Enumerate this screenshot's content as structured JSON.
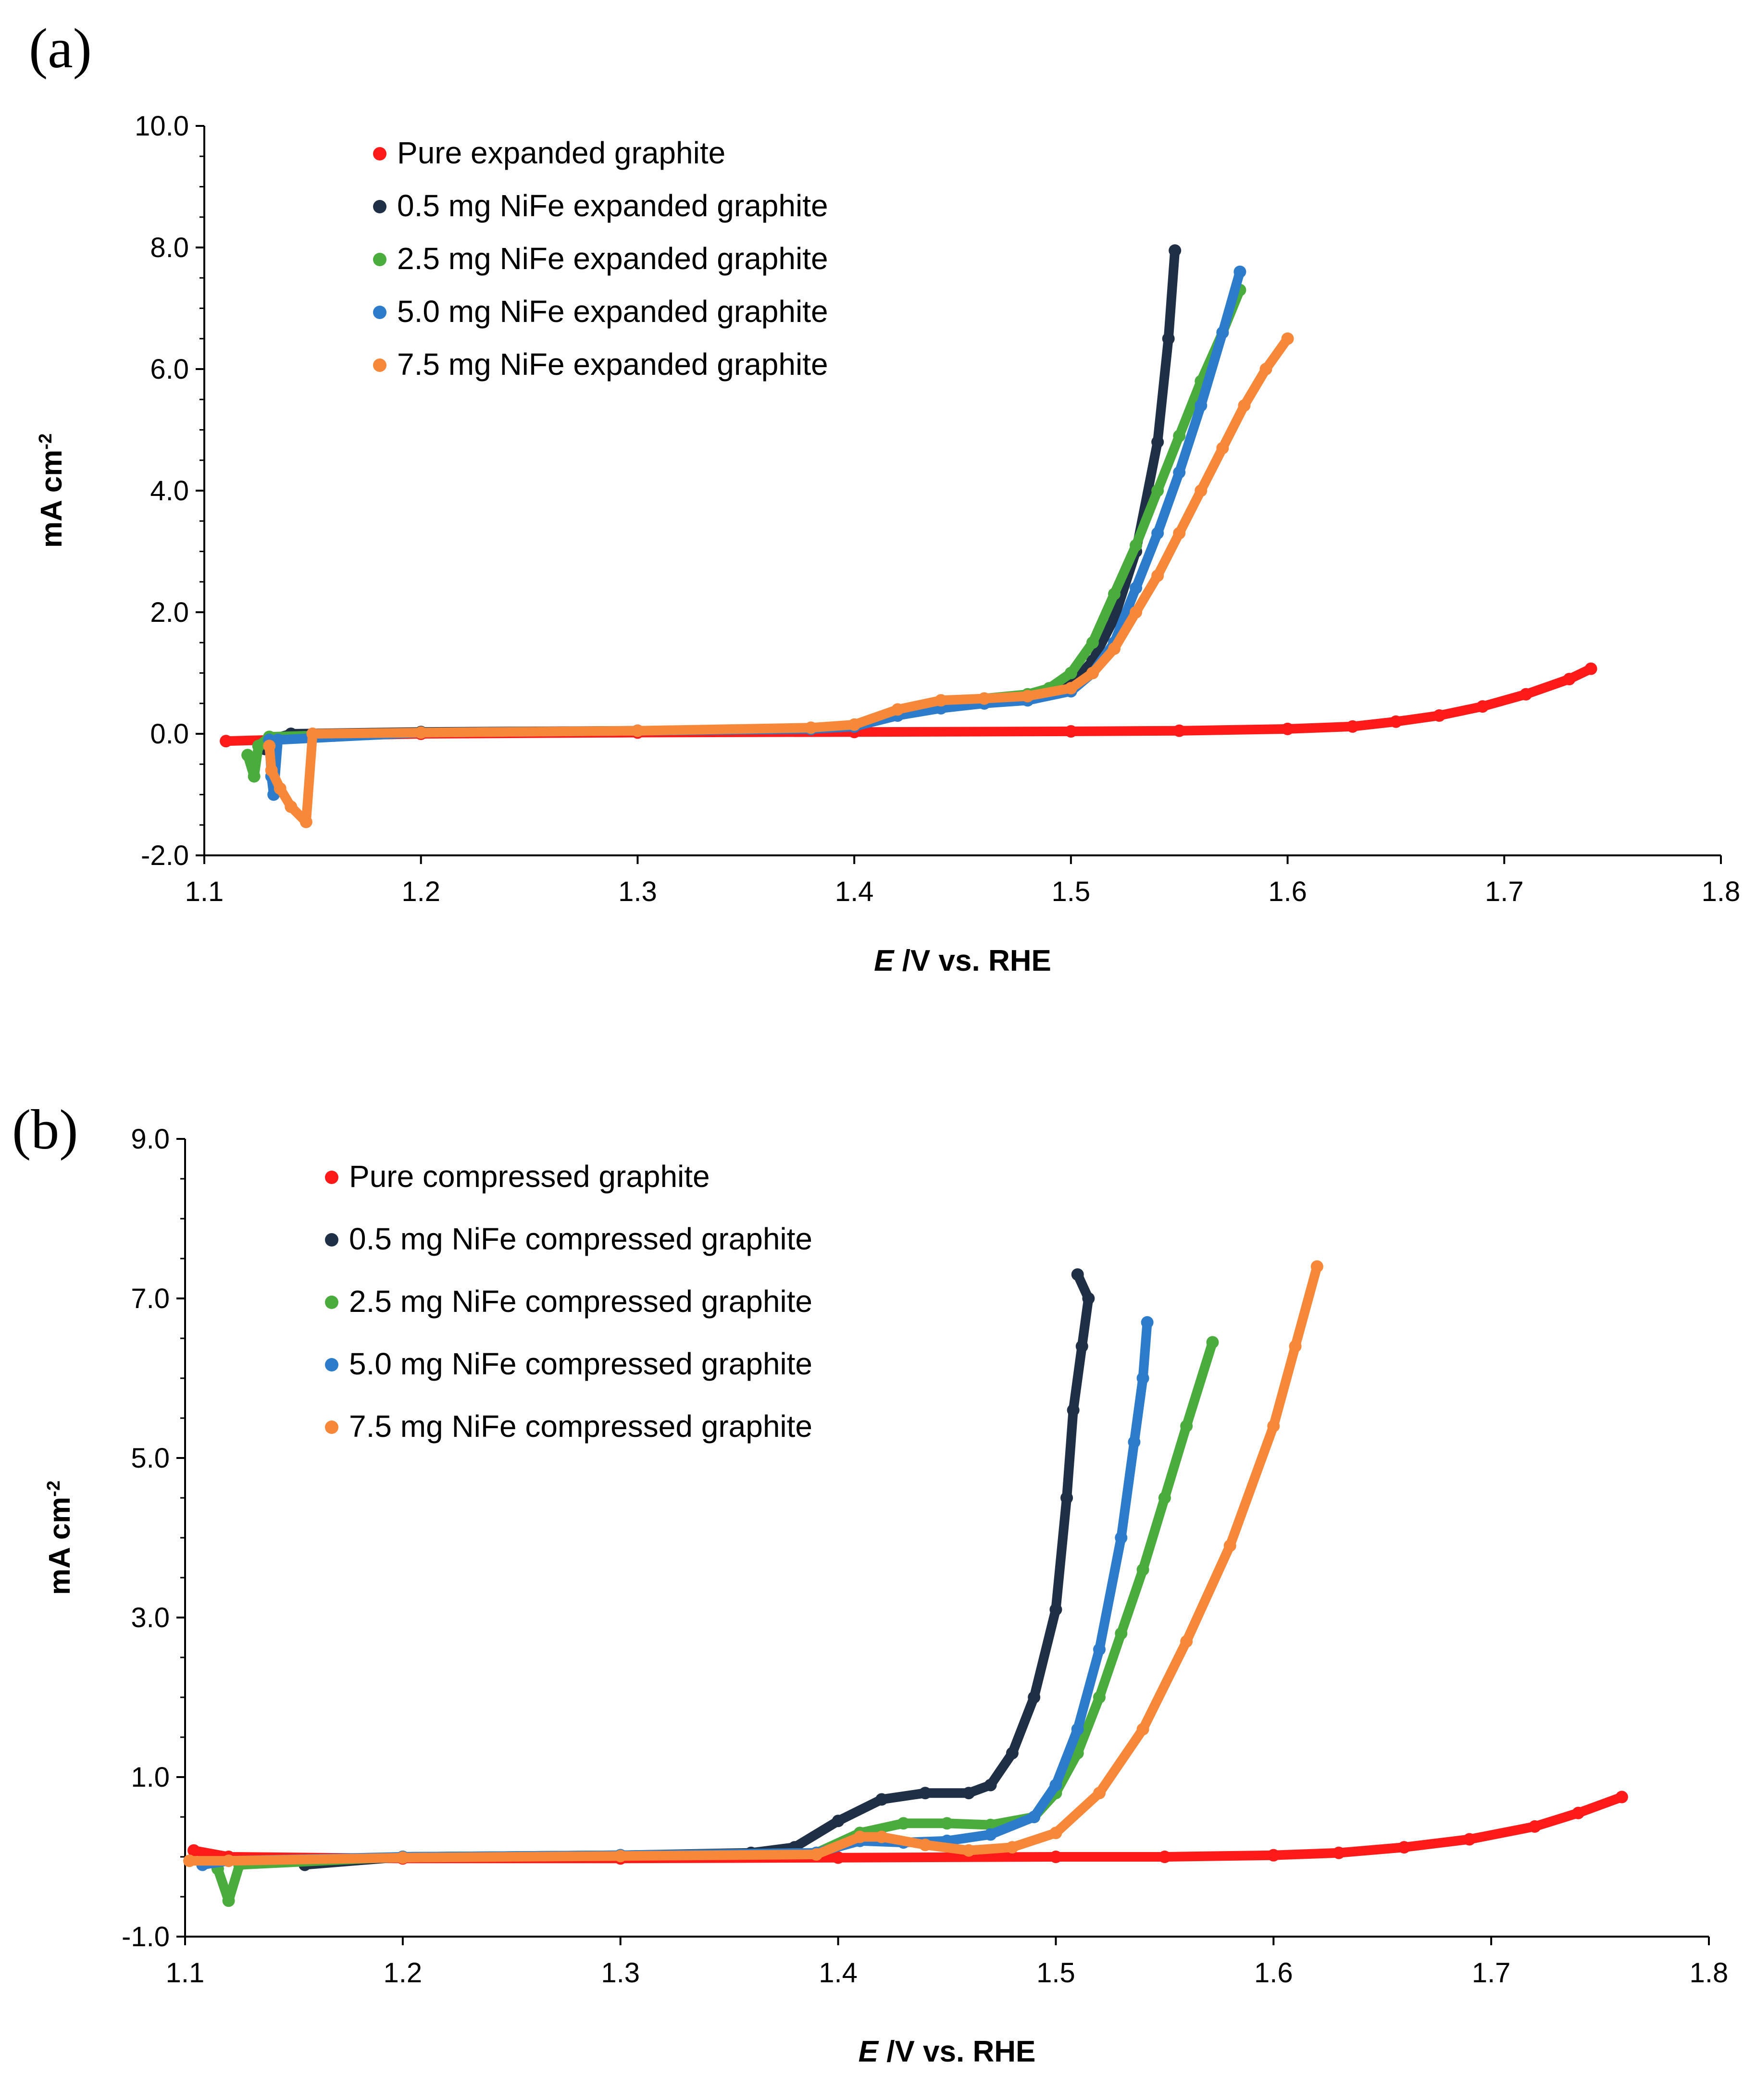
{
  "chart_data": [
    {
      "panel": "(a)",
      "type": "scatter",
      "xlabel_italic": "E",
      "xlabel_rest": " /V vs. RHE",
      "ylabel": "mA cm",
      "ylabel_sup": "-2",
      "xlim": [
        1.1,
        1.8
      ],
      "ylim": [
        -2.0,
        10.0
      ],
      "xticks": [
        1.1,
        1.2,
        1.3,
        1.4,
        1.5,
        1.6,
        1.7,
        1.8
      ],
      "xtick_labels": [
        "1.1",
        "1.2",
        "1.3",
        "1.4",
        "1.5",
        "1.6",
        "1.7",
        "1.8"
      ],
      "yticks": [
        -2.0,
        0.0,
        2.0,
        4.0,
        6.0,
        8.0,
        10.0
      ],
      "ytick_labels": [
        "-2.0",
        "0.0",
        "2.0",
        "4.0",
        "6.0",
        "8.0",
        "10.0"
      ],
      "legend_position": "top-left",
      "series": [
        {
          "name": "Pure expanded graphite",
          "color": "#ff1a1a",
          "points": [
            [
              1.11,
              -0.12
            ],
            [
              1.13,
              -0.1
            ],
            [
              1.16,
              -0.03
            ],
            [
              1.2,
              0.0
            ],
            [
              1.3,
              0.02
            ],
            [
              1.4,
              0.03
            ],
            [
              1.5,
              0.04
            ],
            [
              1.55,
              0.05
            ],
            [
              1.6,
              0.08
            ],
            [
              1.63,
              0.12
            ],
            [
              1.65,
              0.2
            ],
            [
              1.67,
              0.3
            ],
            [
              1.69,
              0.45
            ],
            [
              1.71,
              0.65
            ],
            [
              1.73,
              0.9
            ],
            [
              1.74,
              1.07
            ]
          ]
        },
        {
          "name": "0.5 mg NiFe expanded graphite",
          "color": "#1f2f45",
          "points": [
            [
              1.128,
              -0.25
            ],
            [
              1.13,
              -0.1
            ],
            [
              1.14,
              0.0
            ],
            [
              1.2,
              0.03
            ],
            [
              1.3,
              0.05
            ],
            [
              1.38,
              0.08
            ],
            [
              1.4,
              0.12
            ],
            [
              1.42,
              0.3
            ],
            [
              1.44,
              0.45
            ],
            [
              1.46,
              0.5
            ],
            [
              1.48,
              0.6
            ],
            [
              1.5,
              0.8
            ],
            [
              1.51,
              1.2
            ],
            [
              1.52,
              1.9
            ],
            [
              1.53,
              3.0
            ],
            [
              1.54,
              4.8
            ],
            [
              1.545,
              6.5
            ],
            [
              1.548,
              7.95
            ]
          ]
        },
        {
          "name": "2.5 mg NiFe expanded graphite",
          "color": "#4aac3d",
          "points": [
            [
              1.12,
              -0.35
            ],
            [
              1.123,
              -0.7
            ],
            [
              1.125,
              -0.2
            ],
            [
              1.13,
              -0.05
            ],
            [
              1.2,
              0.02
            ],
            [
              1.3,
              0.05
            ],
            [
              1.38,
              0.08
            ],
            [
              1.4,
              0.15
            ],
            [
              1.42,
              0.35
            ],
            [
              1.44,
              0.5
            ],
            [
              1.46,
              0.58
            ],
            [
              1.48,
              0.65
            ],
            [
              1.49,
              0.75
            ],
            [
              1.5,
              1.0
            ],
            [
              1.51,
              1.5
            ],
            [
              1.52,
              2.3
            ],
            [
              1.53,
              3.1
            ],
            [
              1.54,
              4.0
            ],
            [
              1.55,
              4.9
            ],
            [
              1.56,
              5.8
            ],
            [
              1.57,
              6.6
            ],
            [
              1.578,
              7.3
            ]
          ]
        },
        {
          "name": "5.0 mg NiFe expanded graphite",
          "color": "#2d7ccc",
          "points": [
            [
              1.13,
              -0.1
            ],
            [
              1.131,
              -0.7
            ],
            [
              1.132,
              -1.0
            ],
            [
              1.134,
              -0.1
            ],
            [
              1.2,
              0.02
            ],
            [
              1.3,
              0.05
            ],
            [
              1.38,
              0.08
            ],
            [
              1.4,
              0.12
            ],
            [
              1.42,
              0.3
            ],
            [
              1.44,
              0.42
            ],
            [
              1.46,
              0.5
            ],
            [
              1.48,
              0.55
            ],
            [
              1.5,
              0.7
            ],
            [
              1.51,
              1.0
            ],
            [
              1.52,
              1.5
            ],
            [
              1.53,
              2.4
            ],
            [
              1.54,
              3.3
            ],
            [
              1.55,
              4.3
            ],
            [
              1.56,
              5.4
            ],
            [
              1.57,
              6.6
            ],
            [
              1.578,
              7.6
            ]
          ]
        },
        {
          "name": "7.5 mg NiFe expanded graphite",
          "color": "#f7883a",
          "points": [
            [
              1.13,
              -0.2
            ],
            [
              1.131,
              -0.6
            ],
            [
              1.135,
              -0.9
            ],
            [
              1.14,
              -1.2
            ],
            [
              1.147,
              -1.45
            ],
            [
              1.15,
              0.0
            ],
            [
              1.2,
              0.02
            ],
            [
              1.3,
              0.05
            ],
            [
              1.38,
              0.1
            ],
            [
              1.4,
              0.15
            ],
            [
              1.42,
              0.4
            ],
            [
              1.44,
              0.55
            ],
            [
              1.46,
              0.58
            ],
            [
              1.48,
              0.62
            ],
            [
              1.5,
              0.75
            ],
            [
              1.51,
              1.0
            ],
            [
              1.52,
              1.4
            ],
            [
              1.53,
              2.0
            ],
            [
              1.54,
              2.6
            ],
            [
              1.55,
              3.3
            ],
            [
              1.56,
              4.0
            ],
            [
              1.57,
              4.7
            ],
            [
              1.58,
              5.4
            ],
            [
              1.59,
              6.0
            ],
            [
              1.6,
              6.5
            ]
          ]
        }
      ]
    },
    {
      "panel": "(b)",
      "type": "scatter",
      "xlabel_italic": "E",
      "xlabel_rest": " /V vs. RHE",
      "ylabel": "mA cm",
      "ylabel_sup": "-2",
      "xlim": [
        1.1,
        1.8
      ],
      "ylim": [
        -1.0,
        9.0
      ],
      "xticks": [
        1.1,
        1.2,
        1.3,
        1.4,
        1.5,
        1.6,
        1.7,
        1.8
      ],
      "xtick_labels": [
        "1.1",
        "1.2",
        "1.3",
        "1.4",
        "1.5",
        "1.6",
        "1.7",
        "1.8"
      ],
      "yticks": [
        -1.0,
        1.0,
        3.0,
        5.0,
        7.0,
        9.0
      ],
      "ytick_labels": [
        "-1.0",
        "1.0",
        "3.0",
        "5.0",
        "7.0",
        "9.0"
      ],
      "legend_position": "top-left",
      "series": [
        {
          "name": "Pure compressed graphite",
          "color": "#ff1a1a",
          "points": [
            [
              1.104,
              0.08
            ],
            [
              1.12,
              0.0
            ],
            [
              1.2,
              -0.02
            ],
            [
              1.3,
              -0.02
            ],
            [
              1.4,
              -0.01
            ],
            [
              1.5,
              0.0
            ],
            [
              1.55,
              0.0
            ],
            [
              1.6,
              0.02
            ],
            [
              1.63,
              0.05
            ],
            [
              1.66,
              0.12
            ],
            [
              1.69,
              0.22
            ],
            [
              1.72,
              0.38
            ],
            [
              1.74,
              0.55
            ],
            [
              1.76,
              0.75
            ]
          ]
        },
        {
          "name": "0.5 mg NiFe compressed graphite",
          "color": "#1f2f45",
          "points": [
            [
              1.155,
              -0.1
            ],
            [
              1.2,
              0.0
            ],
            [
              1.3,
              0.02
            ],
            [
              1.36,
              0.05
            ],
            [
              1.38,
              0.12
            ],
            [
              1.4,
              0.45
            ],
            [
              1.42,
              0.72
            ],
            [
              1.44,
              0.8
            ],
            [
              1.46,
              0.8
            ],
            [
              1.47,
              0.9
            ],
            [
              1.48,
              1.3
            ],
            [
              1.49,
              2.0
            ],
            [
              1.5,
              3.1
            ],
            [
              1.505,
              4.5
            ],
            [
              1.508,
              5.6
            ],
            [
              1.512,
              6.4
            ],
            [
              1.515,
              7.0
            ],
            [
              1.51,
              7.3
            ]
          ]
        },
        {
          "name": "2.5 mg NiFe compressed graphite",
          "color": "#4aac3d",
          "points": [
            [
              1.115,
              -0.15
            ],
            [
              1.12,
              -0.55
            ],
            [
              1.125,
              -0.1
            ],
            [
              1.2,
              0.0
            ],
            [
              1.3,
              0.02
            ],
            [
              1.39,
              0.05
            ],
            [
              1.41,
              0.3
            ],
            [
              1.43,
              0.42
            ],
            [
              1.45,
              0.42
            ],
            [
              1.47,
              0.4
            ],
            [
              1.49,
              0.5
            ],
            [
              1.5,
              0.8
            ],
            [
              1.51,
              1.3
            ],
            [
              1.52,
              2.0
            ],
            [
              1.53,
              2.8
            ],
            [
              1.54,
              3.6
            ],
            [
              1.55,
              4.5
            ],
            [
              1.56,
              5.4
            ],
            [
              1.572,
              6.45
            ]
          ]
        },
        {
          "name": "5.0 mg NiFe compressed graphite",
          "color": "#2d7ccc",
          "points": [
            [
              1.108,
              -0.1
            ],
            [
              1.12,
              -0.05
            ],
            [
              1.2,
              0.0
            ],
            [
              1.3,
              0.02
            ],
            [
              1.39,
              0.05
            ],
            [
              1.41,
              0.2
            ],
            [
              1.43,
              0.18
            ],
            [
              1.45,
              0.2
            ],
            [
              1.47,
              0.28
            ],
            [
              1.49,
              0.5
            ],
            [
              1.5,
              0.9
            ],
            [
              1.51,
              1.6
            ],
            [
              1.52,
              2.6
            ],
            [
              1.53,
              4.0
            ],
            [
              1.536,
              5.2
            ],
            [
              1.54,
              6.0
            ],
            [
              1.542,
              6.7
            ]
          ]
        },
        {
          "name": "7.5 mg NiFe compressed graphite",
          "color": "#f7883a",
          "points": [
            [
              1.102,
              -0.05
            ],
            [
              1.12,
              -0.05
            ],
            [
              1.2,
              -0.01
            ],
            [
              1.3,
              0.01
            ],
            [
              1.39,
              0.03
            ],
            [
              1.41,
              0.25
            ],
            [
              1.42,
              0.25
            ],
            [
              1.44,
              0.15
            ],
            [
              1.46,
              0.08
            ],
            [
              1.48,
              0.12
            ],
            [
              1.5,
              0.3
            ],
            [
              1.52,
              0.8
            ],
            [
              1.54,
              1.6
            ],
            [
              1.56,
              2.7
            ],
            [
              1.58,
              3.9
            ],
            [
              1.6,
              5.4
            ],
            [
              1.61,
              6.4
            ],
            [
              1.62,
              7.4
            ]
          ]
        }
      ]
    }
  ]
}
